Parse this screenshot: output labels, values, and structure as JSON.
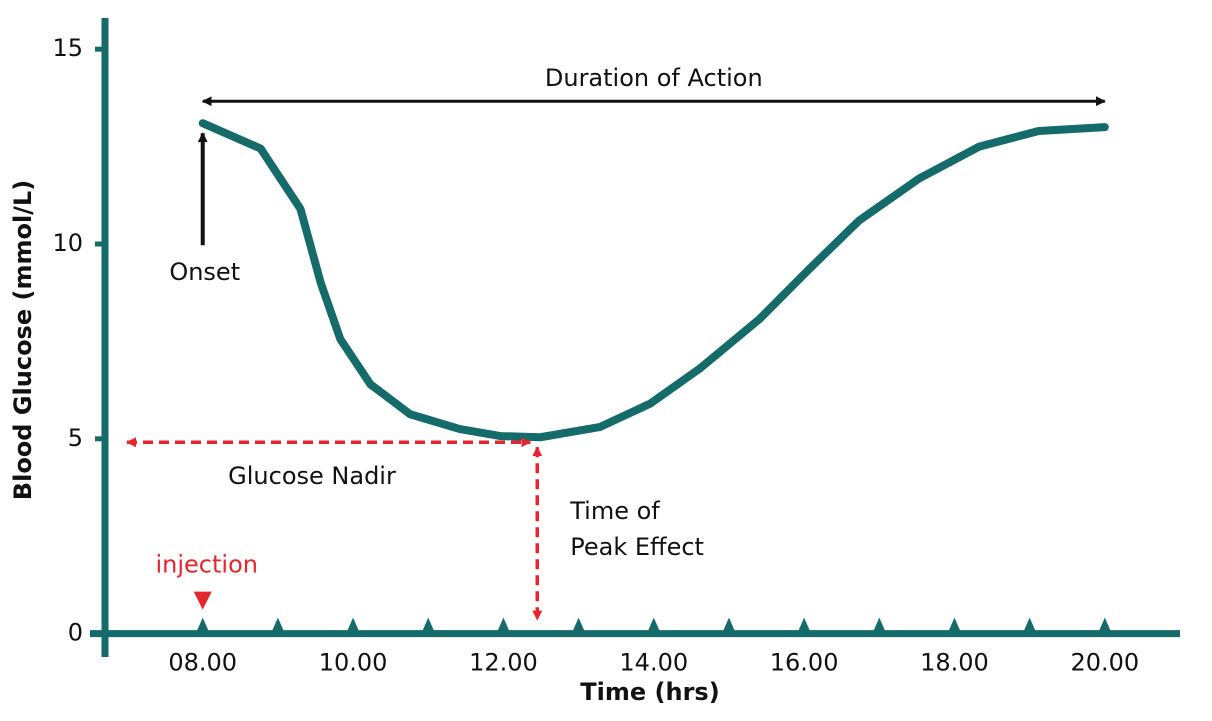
{
  "chart_data": {
    "type": "line",
    "x_label": "Time (hrs)",
    "y_label": "Blood Glucose (mmol/L)",
    "x": [
      8,
      8.77,
      9.3,
      9.57,
      9.83,
      10.23,
      10.76,
      11.42,
      11.96,
      12.49,
      13.28,
      13.95,
      14.61,
      15.41,
      16.07,
      16.73,
      17.53,
      18.33,
      19.12,
      20
    ],
    "series": [
      {
        "name": "Blood glucose",
        "color": "#156a6a",
        "values": [
          13.1,
          12.45,
          10.9,
          9.0,
          7.56,
          6.4,
          5.63,
          5.25,
          5.07,
          5.04,
          5.3,
          5.9,
          6.8,
          8.08,
          9.36,
          10.6,
          11.68,
          12.5,
          12.9,
          13.0
        ]
      }
    ],
    "xlim": [
      6.7,
      21
    ],
    "ylim": [
      -0.6,
      15.8
    ],
    "xticks": [
      {
        "value": 8,
        "label": "08.00"
      },
      {
        "value": 10,
        "label": "10.00"
      },
      {
        "value": 12,
        "label": "12.00"
      },
      {
        "value": 14,
        "label": "14.00"
      },
      {
        "value": 16,
        "label": "16.00"
      },
      {
        "value": 18,
        "label": "18.00"
      },
      {
        "value": 20,
        "label": "20.00"
      }
    ],
    "xminorticks": [
      9,
      11,
      13,
      15,
      17,
      19
    ],
    "yticks": [
      0,
      5,
      10,
      15
    ],
    "annotation_color": "#e5262d",
    "annotations": {
      "duration": "Duration of Action",
      "onset": "Onset",
      "nadir": "Glucose Nadir",
      "peak": [
        "Time of",
        "Peak Effect"
      ],
      "injection": "injection"
    }
  }
}
